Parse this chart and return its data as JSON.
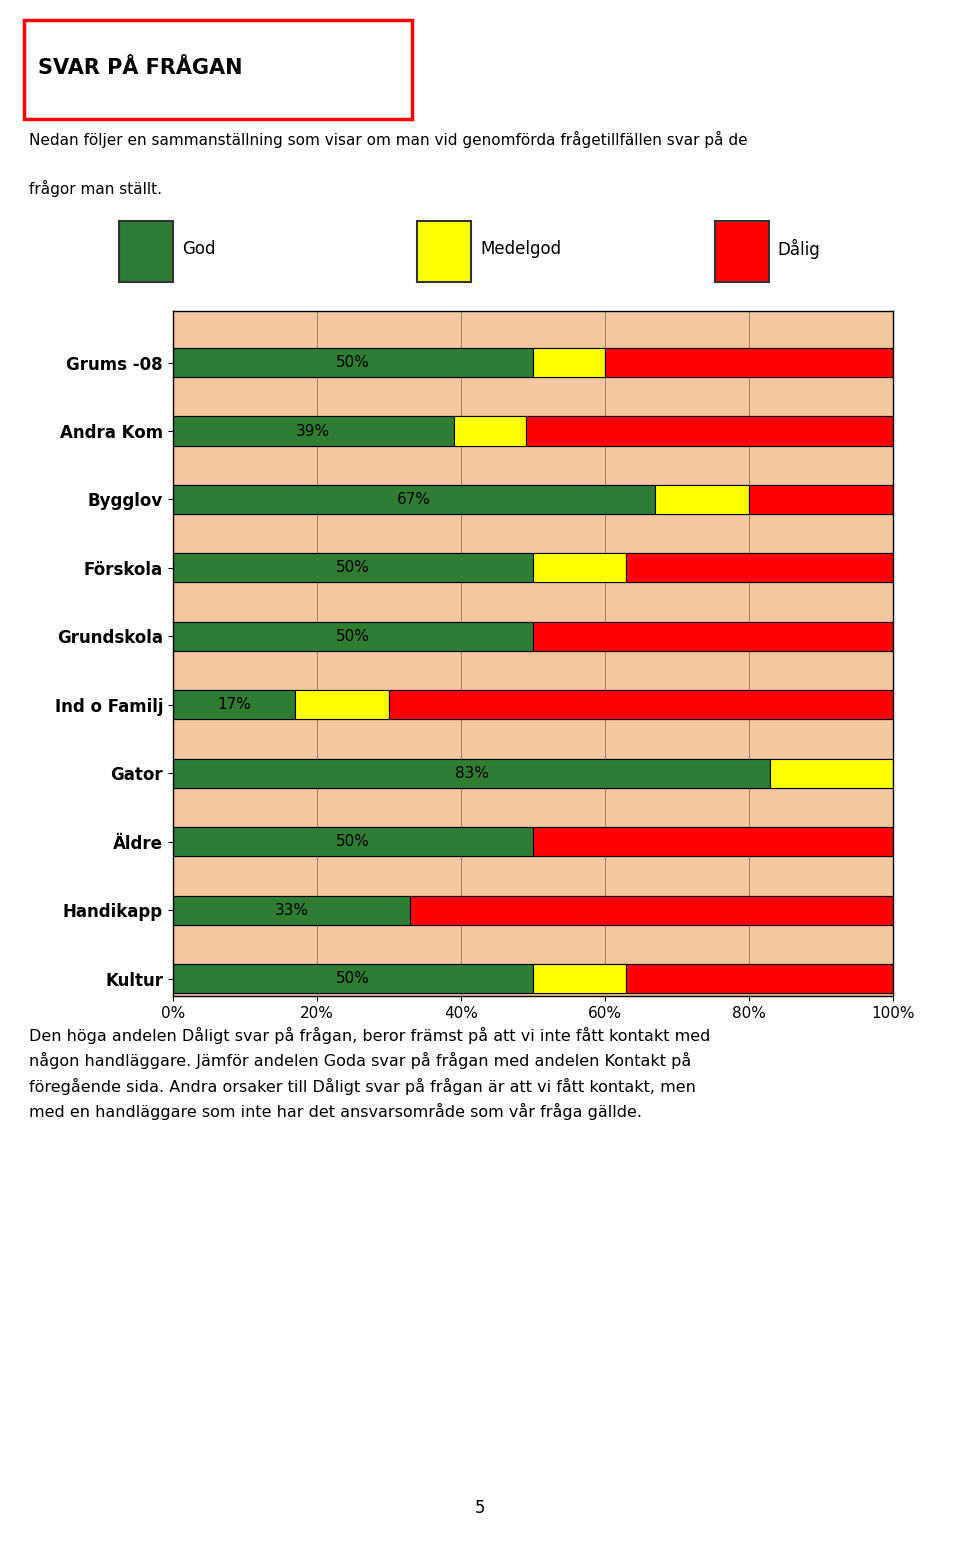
{
  "categories": [
    "Grums -08",
    "Andra Kom",
    "Bygglov",
    "Förskola",
    "Grundskola",
    "Ind o Familj",
    "Gator",
    "Äldre",
    "Handikapp",
    "Kultur"
  ],
  "god": [
    50,
    39,
    67,
    50,
    50,
    17,
    83,
    50,
    33,
    50
  ],
  "medelgod": [
    10,
    10,
    13,
    13,
    0,
    13,
    17,
    0,
    0,
    13
  ],
  "dalig": [
    40,
    51,
    20,
    37,
    50,
    70,
    0,
    50,
    67,
    37
  ],
  "god_labels": [
    "50%",
    "39%",
    "67%",
    "50%",
    "50%",
    "17%",
    "83%",
    "50%",
    "33%",
    "50%"
  ],
  "color_god": "#2E7D32",
  "color_medelgod": "#FFFF00",
  "color_dalig": "#FF0000",
  "color_bg": "#F4C7A0",
  "title": "SVAR PÅ FRÅGAN",
  "subtitle1": "Nedan följer en sammanställning som visar om man vid genomförda frågetillfällen svar på de",
  "subtitle2": "frågor man ställt.",
  "footer": "Den höga andelen Dåligt svar på frågan, beror främst på att vi inte fått kontakt med\nnågon handläggare. Jämför andelen Goda svar på frågan med andelen Kontakt på\nföregående sida. Andra orsaker till Dåligt svar på frågan är att vi fått kontakt, men\nmed en handläggare som inte har det ansvarsområde som vår fråga gällde.",
  "legend_labels": [
    "God",
    "Medelgod",
    "Dålig"
  ],
  "xlim": [
    0,
    100
  ],
  "xticks": [
    0,
    20,
    40,
    60,
    80,
    100
  ],
  "xticklabels": [
    "0%",
    "20%",
    "40%",
    "60%",
    "80%",
    "100%"
  ],
  "page_number": "5"
}
